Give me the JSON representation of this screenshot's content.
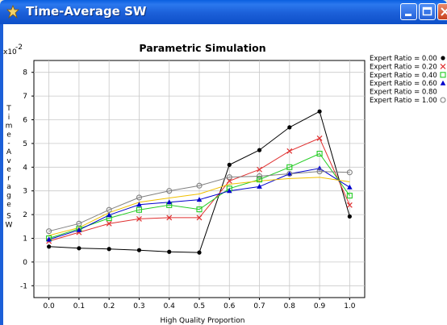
{
  "window": {
    "title": "Time-Average SW",
    "colors": {
      "titlebar": "#1b5fd8",
      "close": "#d2522b"
    }
  },
  "chart_data": {
    "type": "line",
    "title": "Parametric Simulation",
    "xlabel": "High Quality Proportion",
    "ylabel": "Time-Average SW",
    "exponent_label": "x10",
    "exponent_power": "-2",
    "x": [
      0.0,
      0.1,
      0.2,
      0.3,
      0.4,
      0.5,
      0.6,
      0.7,
      0.8,
      0.9,
      1.0
    ],
    "x_ticks": [
      "0.0",
      "0.1",
      "0.2",
      "0.3",
      "0.4",
      "0.5",
      "0.6",
      "0.7",
      "0.8",
      "0.9",
      "1.0"
    ],
    "y_ticks": [
      "-1",
      "0",
      "1",
      "2",
      "3",
      "4",
      "5",
      "6",
      "7",
      "8"
    ],
    "xlim": [
      -0.05,
      1.05
    ],
    "ylim": [
      -1.5,
      8.5
    ],
    "grid": true,
    "legend_position": "right",
    "series": [
      {
        "name": "Expert Ratio = 0.00",
        "color": "#000000",
        "marker": "dot",
        "values": [
          0.65,
          0.58,
          0.55,
          0.5,
          0.43,
          0.4,
          4.1,
          4.72,
          5.68,
          6.35,
          1.92
        ]
      },
      {
        "name": "Expert Ratio = 0.20",
        "color": "#e03030",
        "marker": "x",
        "values": [
          0.88,
          1.25,
          1.62,
          1.82,
          1.87,
          1.87,
          3.42,
          3.9,
          4.68,
          5.22,
          2.4
        ]
      },
      {
        "name": "Expert Ratio = 0.40",
        "color": "#22cc22",
        "marker": "square",
        "values": [
          1.0,
          1.4,
          1.85,
          2.2,
          2.4,
          2.22,
          3.1,
          3.48,
          4.0,
          4.57,
          2.8
        ]
      },
      {
        "name": "Expert Ratio = 0.60",
        "color": "#0000cc",
        "marker": "triangle",
        "values": [
          0.95,
          1.35,
          1.98,
          2.42,
          2.52,
          2.63,
          3.0,
          3.18,
          3.72,
          3.95,
          3.15
        ]
      },
      {
        "name": "Expert Ratio = 0.80",
        "color": "#f0c000",
        "marker": "none",
        "values": [
          1.12,
          1.45,
          2.08,
          2.52,
          2.7,
          2.87,
          3.28,
          3.42,
          3.52,
          3.57,
          3.38
        ]
      },
      {
        "name": "Expert Ratio = 1.00",
        "color": "#808080",
        "marker": "circle",
        "values": [
          1.3,
          1.62,
          2.2,
          2.72,
          3.0,
          3.22,
          3.58,
          3.62,
          3.72,
          3.82,
          3.78
        ]
      }
    ]
  }
}
